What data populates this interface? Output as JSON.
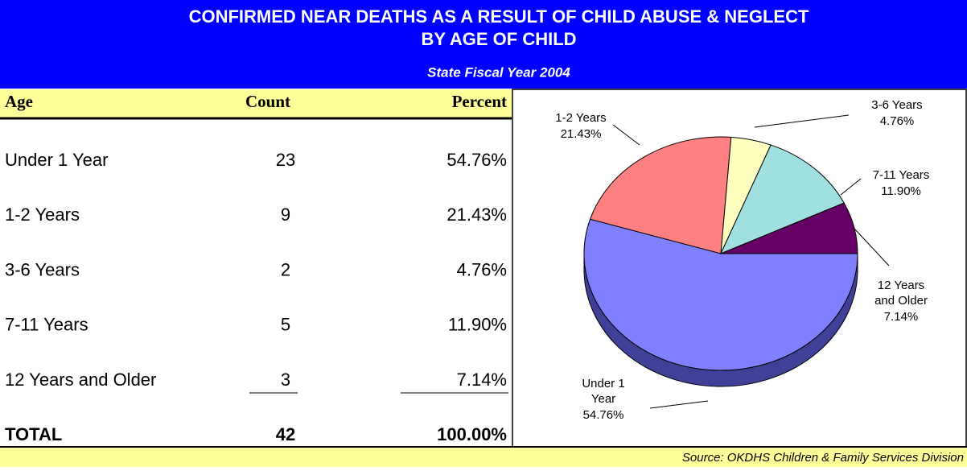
{
  "header": {
    "title_lines": [
      "CONFIRMED NEAR DEATHS AS A RESULT OF CHILD ABUSE & NEGLECT",
      "BY AGE OF CHILD"
    ],
    "subtitle": "State Fiscal Year 2004"
  },
  "table": {
    "columns": [
      "Age",
      "Count",
      "Percent"
    ],
    "rows": [
      [
        "Under 1 Year",
        "23",
        "54.76%"
      ],
      [
        "1-2 Years",
        "9",
        "21.43%"
      ],
      [
        "3-6 Years",
        "2",
        "4.76%"
      ],
      [
        "7-11 Years",
        "5",
        "11.90%"
      ],
      [
        "12 Years and Older",
        "3",
        "7.14%"
      ]
    ],
    "total": [
      "TOTAL",
      "42",
      "100.00%"
    ]
  },
  "chart_data": {
    "type": "pie",
    "categories": [
      "Under 1 Year",
      "1-2 Years",
      "3-6 Years",
      "7-11 Years",
      "12 Years and Older"
    ],
    "values": [
      54.76,
      21.43,
      4.76,
      11.9,
      7.14
    ],
    "value_labels": [
      "54.76%",
      "21.43%",
      "4.76%",
      "11.90%",
      "7.14%"
    ],
    "colors": [
      "#8080ff",
      "#ff8080",
      "#ffffc0",
      "#a0e0e0",
      "#660066"
    ]
  },
  "source": "Source:  OKDHS Children & Family Services Division"
}
